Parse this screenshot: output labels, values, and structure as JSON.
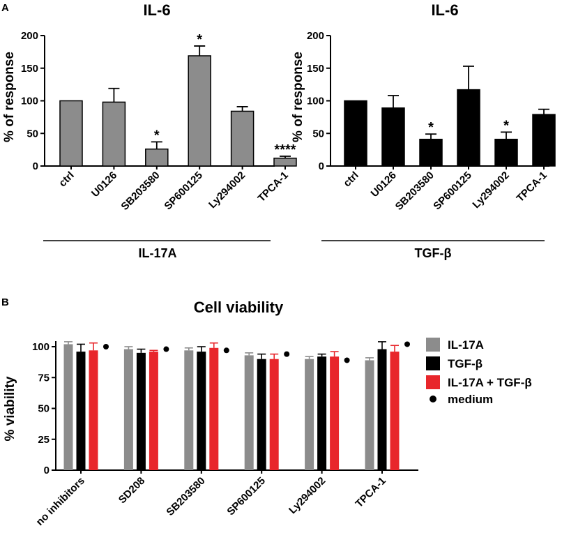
{
  "panels": {
    "a_letter": "A",
    "b_letter": "B"
  },
  "chart_data": [
    {
      "type": "bar",
      "title": "IL-6",
      "ylabel": "% of response",
      "xlabel": "IL-17A",
      "ylim": [
        0,
        200
      ],
      "yticks": [
        "0",
        "50",
        "100",
        "150",
        "200"
      ],
      "color": "#8c8c8c",
      "categories": [
        "ctrl",
        "U0126",
        "SB203580",
        "SP600125",
        "Ly294002",
        "TPCA-1"
      ],
      "values": [
        100,
        98,
        26,
        169,
        84,
        12
      ],
      "errors": [
        0,
        21,
        11,
        15,
        7,
        3
      ],
      "significance": [
        "",
        "",
        "*",
        "*",
        "",
        "****"
      ]
    },
    {
      "type": "bar",
      "title": "IL-6",
      "ylabel": "% of response",
      "xlabel": "TGF-β",
      "ylim": [
        0,
        200
      ],
      "yticks": [
        "0",
        "50",
        "100",
        "150",
        "200"
      ],
      "color": "#000000",
      "categories": [
        "ctrl",
        "U0126",
        "SB203580",
        "SP600125",
        "Ly294002",
        "TPCA-1"
      ],
      "values": [
        100,
        89,
        41,
        117,
        41,
        79
      ],
      "errors": [
        0,
        19,
        8,
        36,
        11,
        8
      ],
      "significance": [
        "",
        "",
        "*",
        "",
        "*",
        ""
      ]
    },
    {
      "type": "bar",
      "title": "Cell viability",
      "ylabel": "% viability",
      "ylim": [
        0,
        100
      ],
      "yticks": [
        "0",
        "25",
        "50",
        "75",
        "100"
      ],
      "categories": [
        "no inhibitors",
        "SD208",
        "SB203580",
        "SP600125",
        "Ly294002",
        "TPCA-1"
      ],
      "series": [
        {
          "name": "IL-17A",
          "color": "#8c8c8c",
          "values": [
            102,
            98,
            97,
            93,
            90,
            89
          ],
          "errors": [
            2,
            2,
            2,
            2,
            2,
            2
          ]
        },
        {
          "name": "TGF-β",
          "color": "#000000",
          "values": [
            96,
            95,
            96,
            90,
            92,
            98
          ],
          "errors": [
            6,
            3,
            4,
            4,
            2,
            6
          ]
        },
        {
          "name": "IL-17A + TGF-β",
          "color": "#e8262b",
          "values": [
            97,
            96,
            99,
            90,
            92,
            96
          ],
          "errors": [
            6,
            1,
            4,
            4,
            4,
            5
          ]
        }
      ],
      "medium": {
        "name": "medium",
        "color": "#000000",
        "values": [
          100,
          98,
          97,
          94,
          89,
          102
        ]
      },
      "legend_position": "right"
    }
  ]
}
